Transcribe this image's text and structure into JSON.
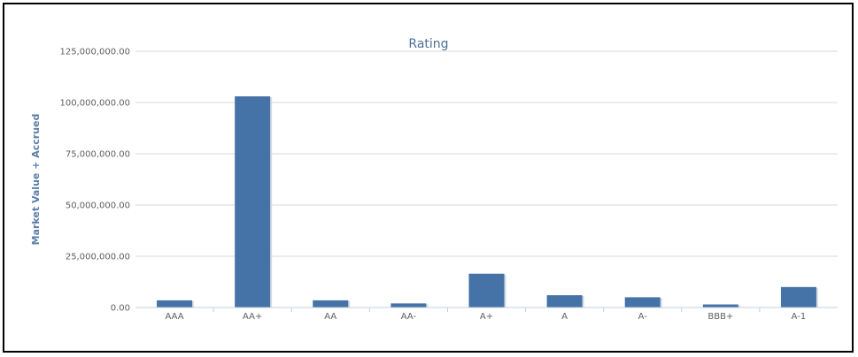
{
  "chart_data": {
    "type": "bar",
    "title": "Rating",
    "xlabel": "",
    "ylabel": "Market Value + Accrued",
    "categories": [
      "AAA",
      "AA+",
      "AA",
      "AA-",
      "A+",
      "A",
      "A-",
      "BBB+",
      "A-1"
    ],
    "values": [
      3500000,
      103000000,
      3500000,
      2000000,
      16500000,
      6000000,
      5000000,
      1500000,
      10000000
    ],
    "ylim": [
      0,
      125000000
    ],
    "yticks": [
      "0.00",
      "25,000,000.00",
      "50,000,000.00",
      "75,000,000.00",
      "100,000,000.00",
      "125,000,000.00"
    ],
    "grid": true,
    "bar_color": "#4572a7"
  }
}
